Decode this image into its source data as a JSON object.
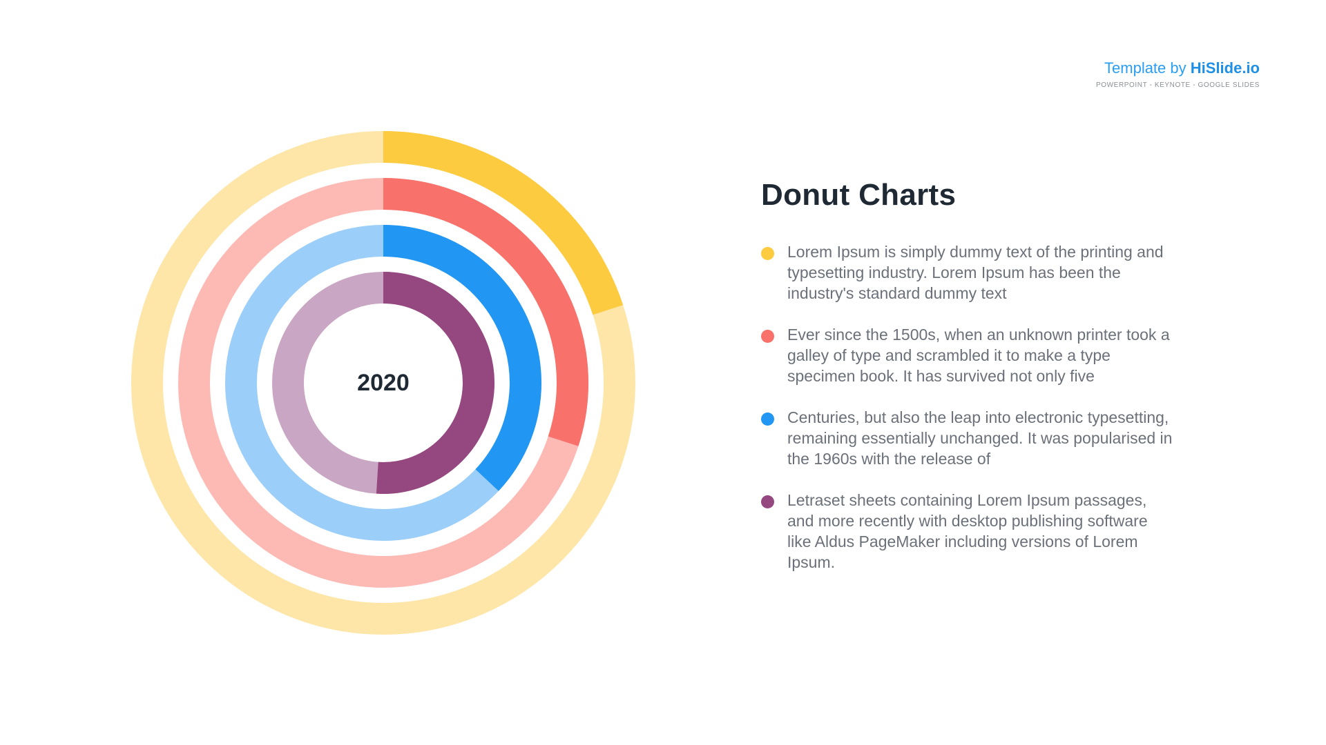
{
  "branding": {
    "prefix": "Template by ",
    "name": "HiSlide.io",
    "subtitle": "POWERPOINT - KEYNOTE - GOOGLE SLIDES"
  },
  "panel": {
    "title": "Donut Charts",
    "items": [
      {
        "text": "Lorem Ipsum is simply dummy text of the printing and typesetting industry. Lorem Ipsum has been the industry's standard dummy text",
        "color": "#fdcb40"
      },
      {
        "text": "Ever since the 1500s, when an unknown printer took a galley of type and scrambled it to make a type specimen book. It has survived not only five",
        "color": "#f8716b"
      },
      {
        "text": "Centuries, but also the leap into electronic typesetting, remaining essentially unchanged. It was popularised in the 1960s with the release of",
        "color": "#2196f3"
      },
      {
        "text": "Letraset sheets containing Lorem Ipsum passages, and more recently with desktop publishing software like Aldus PageMaker including versions of Lorem Ipsum.",
        "color": "#95477f"
      }
    ]
  },
  "chart_data": {
    "type": "donut",
    "center_label": "2020",
    "unit": "percent",
    "series": [
      {
        "value": 20,
        "color": "#fdcb40",
        "track_color": "#fde6a8"
      },
      {
        "value": 30,
        "color": "#f8716b",
        "track_color": "#fdbab5"
      },
      {
        "value": 37,
        "color": "#2196f3",
        "track_color": "#9bcef8"
      },
      {
        "value": 51,
        "color": "#95477f",
        "track_color": "#c9a6c3"
      }
    ]
  }
}
